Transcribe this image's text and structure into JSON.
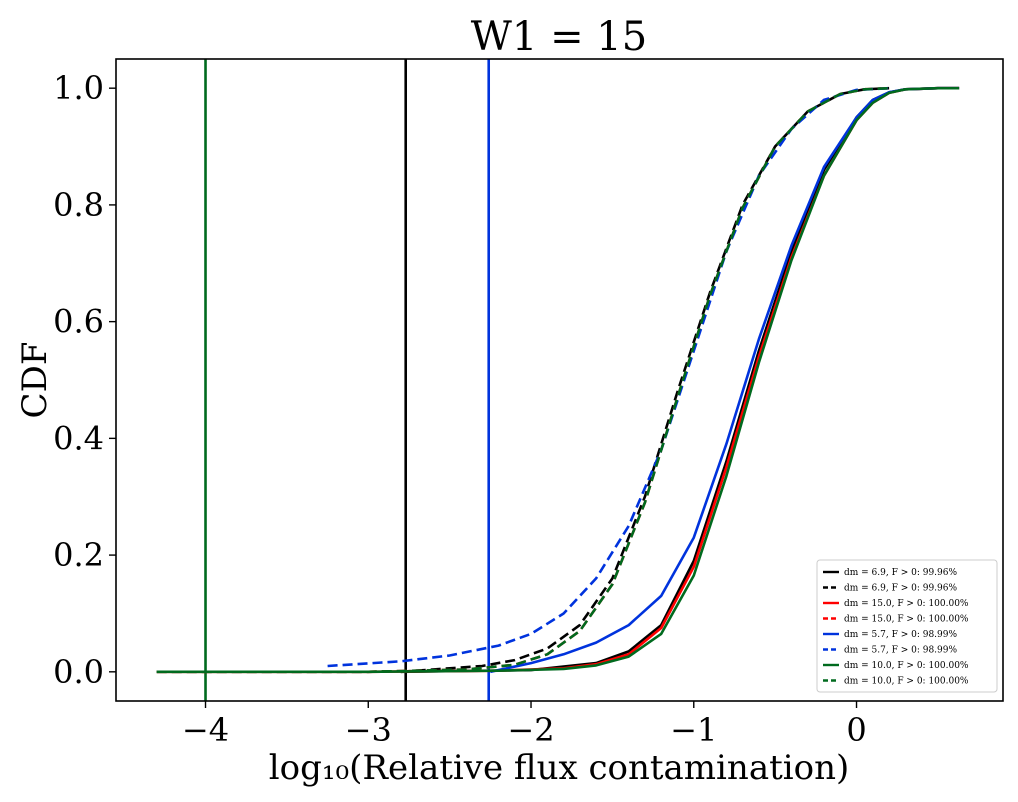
{
  "chart_data": {
    "type": "line",
    "title": "W1 = 15",
    "xlabel": "log₁₀(Relative flux contamination)",
    "ylabel": "CDF",
    "xlim": [
      -4.55,
      0.9
    ],
    "ylim": [
      -0.05,
      1.05
    ],
    "xticks": [
      {
        "value": -4,
        "label": "−4"
      },
      {
        "value": -3,
        "label": "−3"
      },
      {
        "value": -2,
        "label": "−2"
      },
      {
        "value": -1,
        "label": "−1"
      },
      {
        "value": 0,
        "label": "0"
      }
    ],
    "yticks": [
      {
        "value": 0.0,
        "label": "0.0"
      },
      {
        "value": 0.2,
        "label": "0.2"
      },
      {
        "value": 0.4,
        "label": "0.4"
      },
      {
        "value": 0.6,
        "label": "0.6"
      },
      {
        "value": 0.8,
        "label": "0.8"
      },
      {
        "value": 1.0,
        "label": "1.0"
      }
    ],
    "grid": false,
    "legend_position": "lower right",
    "vlines": [
      {
        "x": -4.0,
        "color": "#006a1e"
      },
      {
        "x": -2.77,
        "color": "#000000"
      },
      {
        "x": -2.26,
        "color": "#0033dd"
      }
    ],
    "series": [
      {
        "name": "dm = 6.9, F > 0: 99.96%",
        "color": "#000000",
        "dash": false,
        "x": [
          -2.8,
          -2.0,
          -1.6,
          -1.4,
          -1.2,
          -1.0,
          -0.8,
          -0.6,
          -0.4,
          -0.2,
          0.0,
          0.1,
          0.2,
          0.3,
          0.5,
          0.63
        ],
        "y": [
          0.0,
          0.003,
          0.015,
          0.035,
          0.08,
          0.19,
          0.36,
          0.55,
          0.72,
          0.86,
          0.95,
          0.98,
          0.993,
          0.998,
          1.0,
          1.0
        ]
      },
      {
        "name": "dm = 6.9, F > 0: 99.96%",
        "color": "#000000",
        "dash": true,
        "x": [
          -2.8,
          -2.3,
          -2.1,
          -1.9,
          -1.7,
          -1.5,
          -1.3,
          -1.1,
          -0.9,
          -0.7,
          -0.5,
          -0.3,
          -0.1,
          0.05,
          0.2
        ],
        "y": [
          0.0,
          0.01,
          0.02,
          0.04,
          0.08,
          0.16,
          0.3,
          0.48,
          0.65,
          0.8,
          0.9,
          0.96,
          0.99,
          0.998,
          1.0
        ]
      },
      {
        "name": "dm = 15.0, F > 0: 100.00%",
        "color": "#ff0000",
        "dash": false,
        "x": [
          -4.3,
          -3.0,
          -2.2,
          -1.8,
          -1.6,
          -1.4,
          -1.2,
          -1.0,
          -0.8,
          -0.6,
          -0.4,
          -0.2,
          0.0,
          0.1,
          0.2,
          0.3,
          0.5,
          0.63
        ],
        "y": [
          0.0,
          0.0,
          0.002,
          0.006,
          0.013,
          0.03,
          0.075,
          0.18,
          0.35,
          0.54,
          0.71,
          0.85,
          0.945,
          0.975,
          0.992,
          0.998,
          1.0,
          1.0
        ]
      },
      {
        "name": "dm = 15.0, F > 0: 100.00%",
        "color": "#ff0000",
        "dash": true,
        "x": [
          -4.3,
          -3.0,
          -2.4,
          -2.1,
          -1.9,
          -1.7,
          -1.5,
          -1.3,
          -1.1,
          -0.9,
          -0.7,
          -0.5,
          -0.3,
          -0.1,
          0.05,
          0.2
        ],
        "y": [
          0.0,
          0.0,
          0.004,
          0.012,
          0.03,
          0.07,
          0.15,
          0.29,
          0.47,
          0.645,
          0.795,
          0.9,
          0.96,
          0.99,
          0.998,
          1.0
        ]
      },
      {
        "name": "dm = 5.7, F > 0: 98.99%",
        "color": "#0033dd",
        "dash": false,
        "x": [
          -2.25,
          -2.0,
          -1.8,
          -1.6,
          -1.4,
          -1.2,
          -1.0,
          -0.8,
          -0.6,
          -0.4,
          -0.2,
          0.0,
          0.1,
          0.2,
          0.3,
          0.5,
          0.63
        ],
        "y": [
          0.0,
          0.015,
          0.03,
          0.05,
          0.08,
          0.13,
          0.23,
          0.39,
          0.57,
          0.73,
          0.865,
          0.95,
          0.98,
          0.993,
          0.998,
          1.0,
          1.0
        ]
      },
      {
        "name": "dm = 5.7, F > 0: 98.99%",
        "color": "#0033dd",
        "dash": true,
        "x": [
          -3.25,
          -2.8,
          -2.5,
          -2.2,
          -2.0,
          -1.8,
          -1.6,
          -1.4,
          -1.2,
          -1.0,
          -0.8,
          -0.6,
          -0.4,
          -0.2,
          0.0,
          0.2
        ],
        "y": [
          0.01,
          0.018,
          0.028,
          0.045,
          0.065,
          0.1,
          0.16,
          0.25,
          0.38,
          0.55,
          0.72,
          0.85,
          0.93,
          0.98,
          0.997,
          1.0
        ]
      },
      {
        "name": "dm = 10.0, F > 0: 100.00%",
        "color": "#006a1e",
        "dash": false,
        "x": [
          -4.3,
          -3.0,
          -2.2,
          -1.8,
          -1.6,
          -1.4,
          -1.2,
          -1.0,
          -0.8,
          -0.6,
          -0.4,
          -0.2,
          0.0,
          0.1,
          0.2,
          0.3,
          0.5,
          0.63
        ],
        "y": [
          0.0,
          0.0,
          0.002,
          0.005,
          0.011,
          0.026,
          0.065,
          0.165,
          0.335,
          0.53,
          0.705,
          0.85,
          0.945,
          0.975,
          0.992,
          0.998,
          1.0,
          1.0
        ]
      },
      {
        "name": "dm = 10.0, F > 0: 100.00%",
        "color": "#006a1e",
        "dash": true,
        "x": [
          -4.3,
          -3.0,
          -2.4,
          -2.1,
          -1.9,
          -1.7,
          -1.5,
          -1.3,
          -1.1,
          -0.9,
          -0.7,
          -0.5,
          -0.3,
          -0.1,
          0.05,
          0.2
        ],
        "y": [
          0.0,
          0.0,
          0.004,
          0.012,
          0.03,
          0.07,
          0.15,
          0.29,
          0.47,
          0.645,
          0.795,
          0.9,
          0.96,
          0.99,
          0.998,
          1.0
        ]
      }
    ]
  }
}
